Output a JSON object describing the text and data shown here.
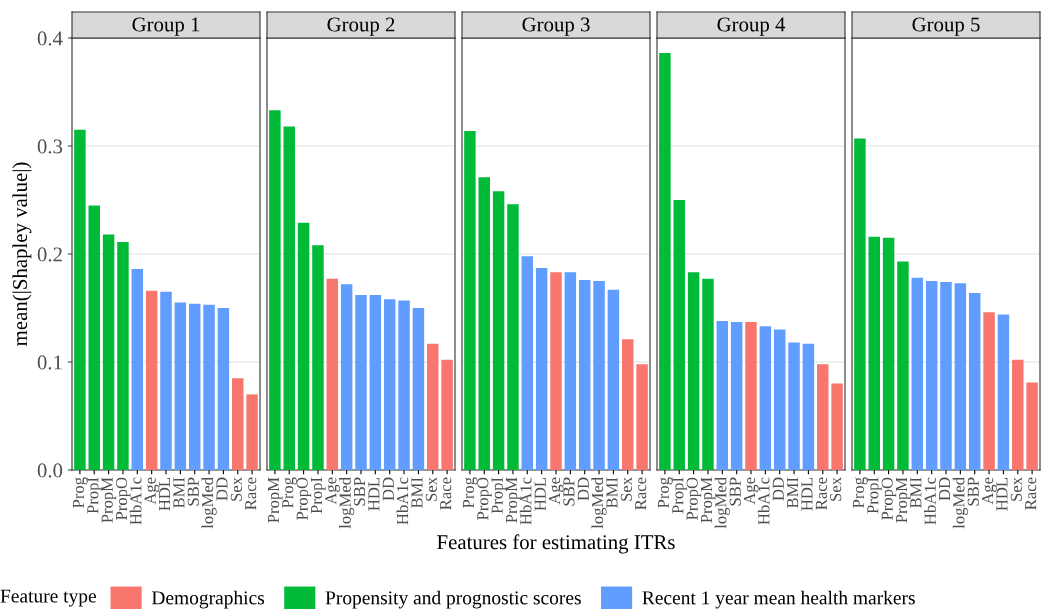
{
  "chart_data": [
    {
      "type": "bar",
      "title": "Group 1",
      "ylabel": "mean(|Shapley value|)",
      "legend_title": "Feature type",
      "legend": "bottom",
      "grid": "y",
      "ylim": [
        0,
        0.4
      ],
      "yticks": [
        {
          "value": 0,
          "label": "0.0"
        },
        {
          "value": 0.1,
          "label": "0.1"
        },
        {
          "value": 0.2,
          "label": "0.2"
        },
        {
          "value": 0.3,
          "label": "0.3"
        },
        {
          "value": 0.4,
          "label": "0.4"
        }
      ],
      "categories": [
        "Prog",
        "PropI",
        "PropM",
        "PropO",
        "HbA1c",
        "Age",
        "HDL",
        "BMI",
        "SBP",
        "logMed",
        "DD",
        "Sex",
        "Race"
      ],
      "series": [
        {
          "name": "Demographics",
          "color": "#f8766d",
          "values": [
            null,
            null,
            null,
            null,
            null,
            0.166,
            null,
            null,
            null,
            null,
            null,
            0.085,
            0.07
          ]
        },
        {
          "name": "Propensity and prognostic scores",
          "color": "#00ba38",
          "values": [
            0.315,
            0.245,
            0.218,
            0.211,
            null,
            null,
            null,
            null,
            null,
            null,
            null,
            null,
            null
          ]
        },
        {
          "name": "Recent 1 year mean health markers",
          "color": "#619cff",
          "values": [
            null,
            null,
            null,
            null,
            0.186,
            null,
            0.165,
            0.155,
            0.154,
            0.153,
            0.15,
            null,
            null
          ]
        }
      ]
    },
    {
      "type": "bar",
      "title": "Group 2",
      "grid": "y",
      "ylim": [
        0,
        0.4
      ],
      "tick_labels": "x",
      "yticks": [
        0,
        0.1,
        0.2,
        0.3,
        0.4
      ],
      "categories": [
        "PropM",
        "Prog",
        "PropO",
        "PropI",
        "Age",
        "logMed",
        "SBP",
        "HDL",
        "DD",
        "HbA1c",
        "BMI",
        "Sex",
        "Race"
      ],
      "series": [
        {
          "color": "#f8766d",
          "values": [
            null,
            null,
            null,
            null,
            0.177,
            null,
            null,
            null,
            null,
            null,
            null,
            0.117,
            0.102
          ]
        },
        {
          "color": "#00ba38",
          "values": [
            0.333,
            0.318,
            0.229,
            0.208,
            null,
            null,
            null,
            null,
            null,
            null,
            null,
            null,
            null
          ]
        },
        {
          "color": "#619cff",
          "values": [
            null,
            null,
            null,
            null,
            null,
            0.172,
            0.162,
            0.162,
            0.158,
            0.157,
            0.15,
            null,
            null
          ]
        }
      ]
    },
    {
      "type": "bar",
      "title": "Group 3",
      "xlabel": "Features for estimating ITRs",
      "grid": "y",
      "ylim": [
        0,
        0.4
      ],
      "tick_labels": "x",
      "yticks": [
        0,
        0.1,
        0.2,
        0.3,
        0.4
      ],
      "categories": [
        "Prog",
        "PropO",
        "PropI",
        "PropM",
        "HbA1c",
        "HDL",
        "Age",
        "SBP",
        "DD",
        "logMed",
        "BMI",
        "Sex",
        "Race"
      ],
      "series": [
        {
          "color": "#f8766d",
          "values": [
            null,
            null,
            null,
            null,
            null,
            null,
            0.183,
            null,
            null,
            null,
            null,
            0.121,
            0.098
          ]
        },
        {
          "color": "#00ba38",
          "values": [
            0.314,
            0.271,
            0.258,
            0.246,
            null,
            null,
            null,
            null,
            null,
            null,
            null,
            null,
            null
          ]
        },
        {
          "color": "#619cff",
          "values": [
            null,
            null,
            null,
            null,
            0.198,
            0.187,
            null,
            0.183,
            0.176,
            0.175,
            0.167,
            null,
            null
          ]
        }
      ]
    },
    {
      "type": "bar",
      "title": "Group 4",
      "grid": "y",
      "ylim": [
        0,
        0.4
      ],
      "tick_labels": "x",
      "yticks": [
        0,
        0.1,
        0.2,
        0.3,
        0.4
      ],
      "categories": [
        "Prog",
        "PropI",
        "PropO",
        "PropM",
        "logMed",
        "SBP",
        "Age",
        "HbA1c",
        "DD",
        "BMI",
        "HDL",
        "Race",
        "Sex"
      ],
      "series": [
        {
          "color": "#f8766d",
          "values": [
            null,
            null,
            null,
            null,
            null,
            null,
            0.137,
            null,
            null,
            null,
            null,
            0.098,
            0.08
          ]
        },
        {
          "color": "#00ba38",
          "values": [
            0.386,
            0.25,
            0.183,
            0.177,
            null,
            null,
            null,
            null,
            null,
            null,
            null,
            null,
            null
          ]
        },
        {
          "color": "#619cff",
          "values": [
            null,
            null,
            null,
            null,
            0.138,
            0.137,
            null,
            0.133,
            0.13,
            0.118,
            0.117,
            null,
            null
          ]
        }
      ]
    },
    {
      "type": "bar",
      "title": "Group 5",
      "grid": "y",
      "ylim": [
        0,
        0.4
      ],
      "tick_labels": "x",
      "yticks": [
        0,
        0.1,
        0.2,
        0.3,
        0.4
      ],
      "categories": [
        "Prog",
        "PropI",
        "PropO",
        "PropM",
        "BMI",
        "HbA1c",
        "DD",
        "logMed",
        "SBP",
        "Age",
        "HDL",
        "Sex",
        "Race"
      ],
      "series": [
        {
          "color": "#f8766d",
          "values": [
            null,
            null,
            null,
            null,
            null,
            null,
            null,
            null,
            null,
            0.146,
            null,
            0.102,
            0.081
          ]
        },
        {
          "color": "#00ba38",
          "values": [
            0.307,
            0.216,
            0.215,
            0.193,
            null,
            null,
            null,
            null,
            null,
            null,
            null,
            null,
            null
          ]
        },
        {
          "color": "#619cff",
          "values": [
            null,
            null,
            null,
            null,
            0.178,
            0.175,
            0.174,
            0.173,
            0.164,
            null,
            0.144,
            null,
            null
          ]
        }
      ]
    }
  ]
}
